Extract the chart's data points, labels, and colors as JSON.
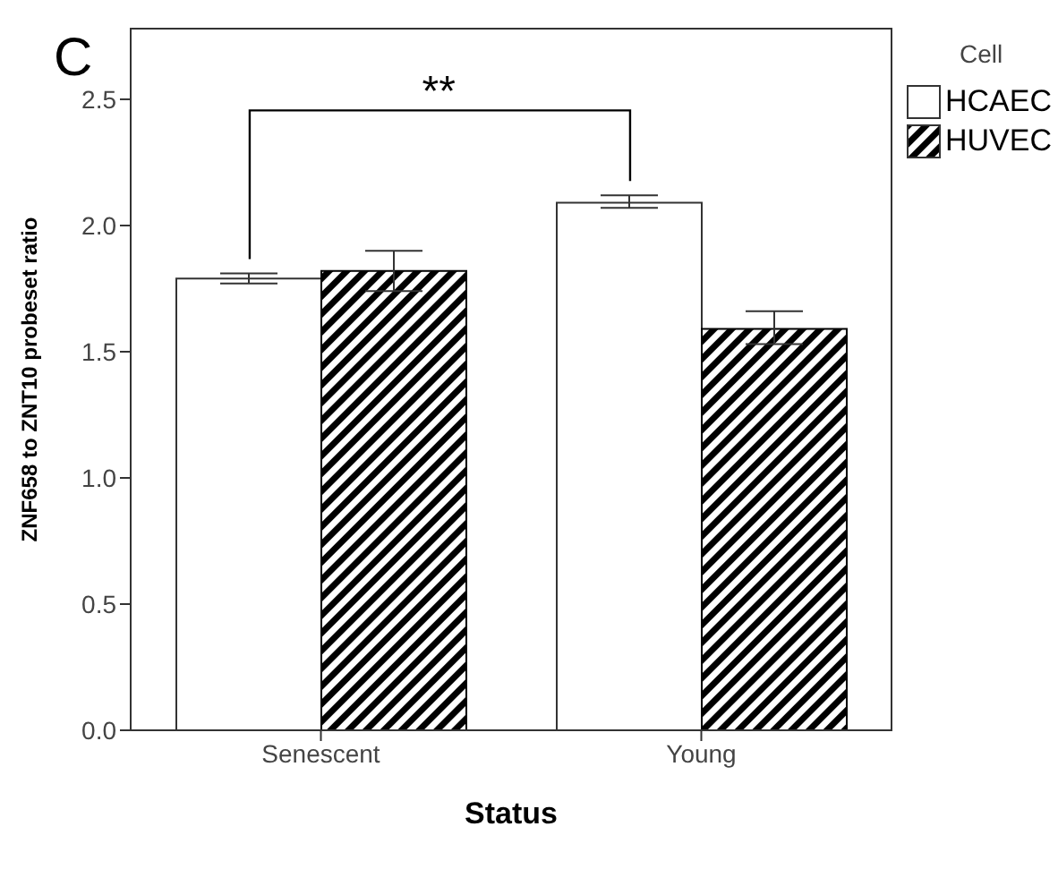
{
  "chart_data": {
    "type": "bar",
    "xlabel": "Status",
    "ylabel": "ZNF658 to ZNT10 probeset ratio",
    "legend_title": "Cell",
    "categories": [
      "Senescent",
      "Young"
    ],
    "series": [
      {
        "name": "HCAEC",
        "color": "#ffffff",
        "values": [
          1.79,
          2.09
        ],
        "errors": [
          [
            1.77,
            1.81
          ],
          [
            2.07,
            2.12
          ]
        ]
      },
      {
        "name": "HUVEC",
        "color": "#000000",
        "values": [
          1.82,
          1.59
        ],
        "errors": [
          [
            1.74,
            1.9
          ],
          [
            1.53,
            1.66
          ]
        ]
      }
    ],
    "ylim": [
      0,
      2.78
    ],
    "yticks": [
      {
        "value": 0,
        "label": "0.0"
      },
      {
        "value": 0.5,
        "label": "0.5"
      },
      {
        "value": 1,
        "label": "1.0"
      },
      {
        "value": 1.5,
        "label": "1.5"
      },
      {
        "value": 2,
        "label": "2.0"
      },
      {
        "value": 2.5,
        "label": "2.5"
      }
    ],
    "annotations": [
      "C",
      "**"
    ],
    "grid": false,
    "legend": "top right"
  }
}
